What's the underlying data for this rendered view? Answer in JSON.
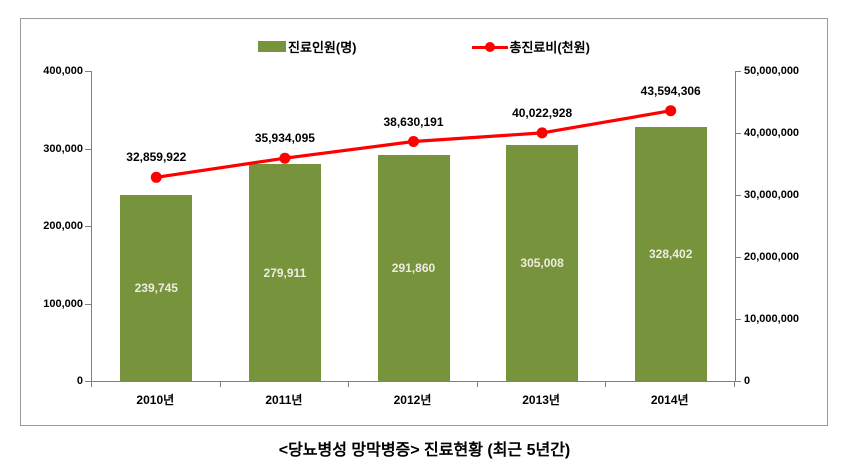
{
  "chart_data": {
    "type": "bar+line",
    "categories": [
      "2010년",
      "2011년",
      "2012년",
      "2013년",
      "2014년"
    ],
    "series": [
      {
        "name": "진료인원(명)",
        "type": "bar",
        "axis": "left",
        "color": "#77933C",
        "values": [
          239745,
          279911,
          291860,
          305008,
          328402
        ],
        "labels": [
          "239,745",
          "279,911",
          "291,860",
          "305,008",
          "328,402"
        ]
      },
      {
        "name": "총진료비(천원)",
        "type": "line",
        "axis": "right",
        "color": "#FF0000",
        "values": [
          32859922,
          35934095,
          38630191,
          40022928,
          43594306
        ],
        "labels": [
          "32,859,922",
          "35,934,095",
          "38,630,191",
          "40,022,928",
          "43,594,306"
        ]
      }
    ],
    "left_axis": {
      "min": 0,
      "max": 400000,
      "step": 100000,
      "tick_labels": [
        "0",
        "100,000",
        "200,000",
        "300,000",
        "400,000"
      ]
    },
    "right_axis": {
      "min": 0,
      "max": 50000000,
      "step": 10000000,
      "tick_labels": [
        "0",
        "10,000,000",
        "20,000,000",
        "30,000,000",
        "40,000,000",
        "50,000,000"
      ]
    },
    "grid": false,
    "legend_position": "top",
    "title": "<당뇨병성 망막병증> 진료현황 (최근 5년간)"
  },
  "legend": {
    "bar_label": "진료인원(명)",
    "line_label": "총진료비(천원)"
  },
  "caption": "<당뇨병성 망막병증> 진료현황 (최근 5년간)"
}
